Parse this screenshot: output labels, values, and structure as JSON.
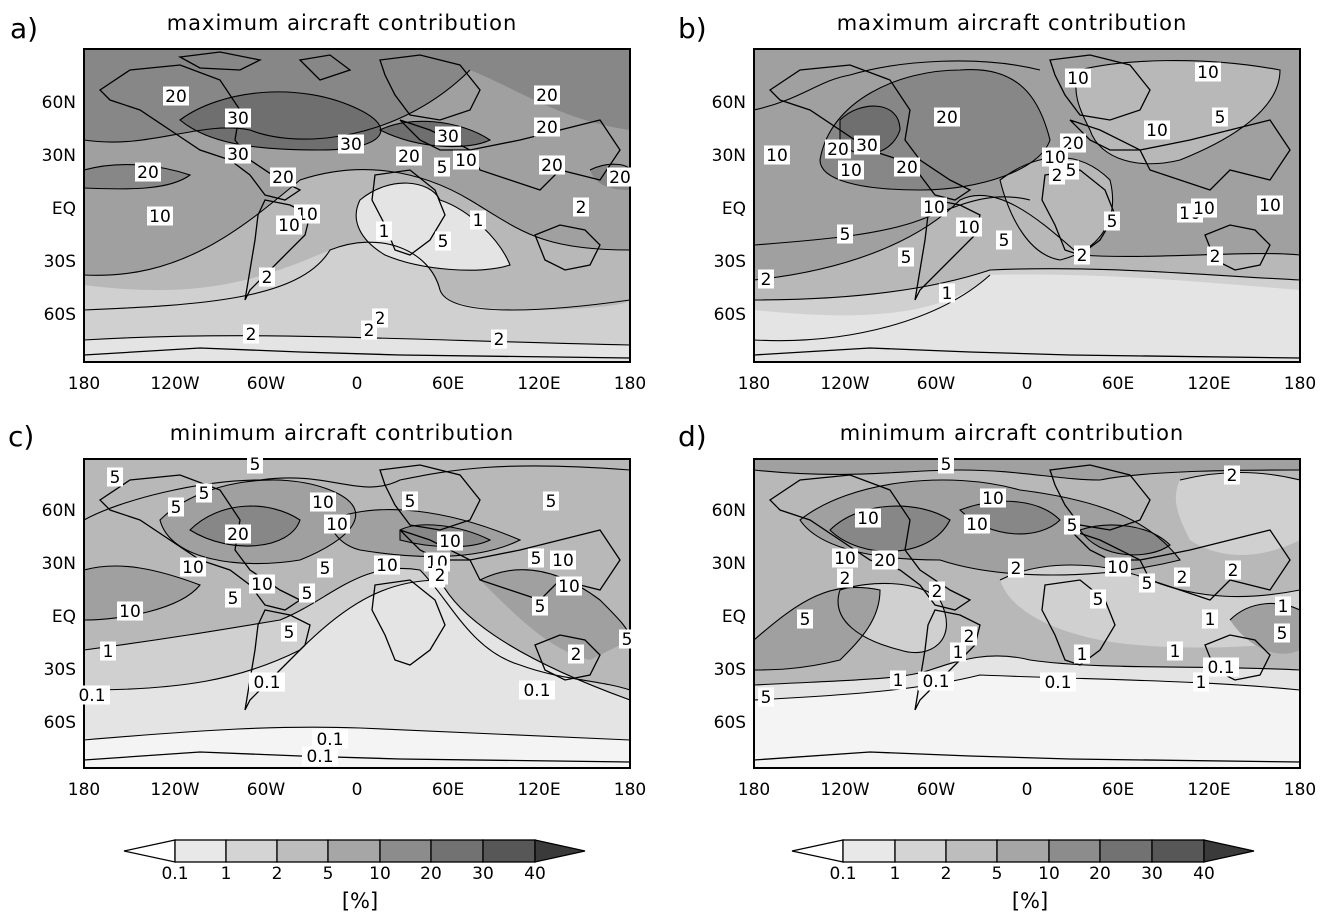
{
  "panels": [
    {
      "letter": "a)",
      "title": "maximum aircraft contribution",
      "y_ticks": [
        "60N",
        "30N",
        "EQ",
        "30S",
        "60S"
      ],
      "x_ticks": [
        "180",
        "120W",
        "60W",
        "0",
        "60E",
        "120E",
        "180"
      ],
      "contour_labels": [
        "20",
        "30",
        "30",
        "30",
        "30",
        "20",
        "20",
        "20",
        "20",
        "20",
        "20",
        "20",
        "5",
        "10",
        "10",
        "10",
        "10",
        "2",
        "1",
        "1",
        "5",
        "2",
        "2",
        "2",
        "2",
        "2"
      ]
    },
    {
      "letter": "b)",
      "title": "maximum aircraft contribution",
      "y_ticks": [
        "60N",
        "30N",
        "EQ",
        "30S",
        "60S"
      ],
      "x_ticks": [
        "180",
        "120W",
        "60W",
        "0",
        "60E",
        "120E",
        "180"
      ],
      "contour_labels": [
        "10",
        "10",
        "20",
        "10",
        "5",
        "10",
        "20",
        "30",
        "20",
        "20",
        "10",
        "10",
        "2",
        "5",
        "10",
        "10",
        "10",
        "10",
        "5",
        "10",
        "5",
        "5",
        "5",
        "2",
        "2",
        "2",
        "1"
      ]
    },
    {
      "letter": "c)",
      "title": "minimum aircraft contribution",
      "y_ticks": [
        "60N",
        "30N",
        "EQ",
        "30S",
        "60S"
      ],
      "x_ticks": [
        "180",
        "120W",
        "60W",
        "0",
        "60E",
        "120E",
        "180"
      ],
      "contour_labels": [
        "5",
        "5",
        "5",
        "5",
        "10",
        "5",
        "5",
        "10",
        "20",
        "10",
        "10",
        "10",
        "10",
        "5",
        "5",
        "10",
        "5",
        "2",
        "10",
        "5",
        "10",
        "10",
        "5",
        "5",
        "5",
        "5",
        "2",
        "1",
        "0.1",
        "0.1",
        "0.1",
        "0.1",
        "0.1"
      ]
    },
    {
      "letter": "d)",
      "title": "minimum aircraft contribution",
      "y_ticks": [
        "60N",
        "30N",
        "EQ",
        "30S",
        "60S"
      ],
      "x_ticks": [
        "180",
        "120W",
        "60W",
        "0",
        "60E",
        "120E",
        "180"
      ],
      "contour_labels": [
        "5",
        "2",
        "10",
        "10",
        "10",
        "5",
        "10",
        "20",
        "2",
        "2",
        "5",
        "10",
        "2",
        "2",
        "2",
        "5",
        "1",
        "1",
        "5",
        "5",
        "2",
        "1",
        "1",
        "1",
        "0.1",
        "1",
        "0.1",
        "0.1",
        "1",
        "5"
      ]
    }
  ],
  "colorbars": [
    {
      "ticks": [
        "0.1",
        "1",
        "2",
        "5",
        "10",
        "20",
        "30",
        "40"
      ],
      "unit": "[%]"
    },
    {
      "ticks": [
        "0.1",
        "1",
        "2",
        "5",
        "10",
        "20",
        "30",
        "40"
      ],
      "unit": "[%]"
    }
  ],
  "shade_levels": [
    "#f4f4f4",
    "#e4e4e4",
    "#d0d0d0",
    "#b8b8b8",
    "#a0a0a0",
    "#878787",
    "#6f6f6f",
    "#555555",
    "#3c3c3c"
  ]
}
